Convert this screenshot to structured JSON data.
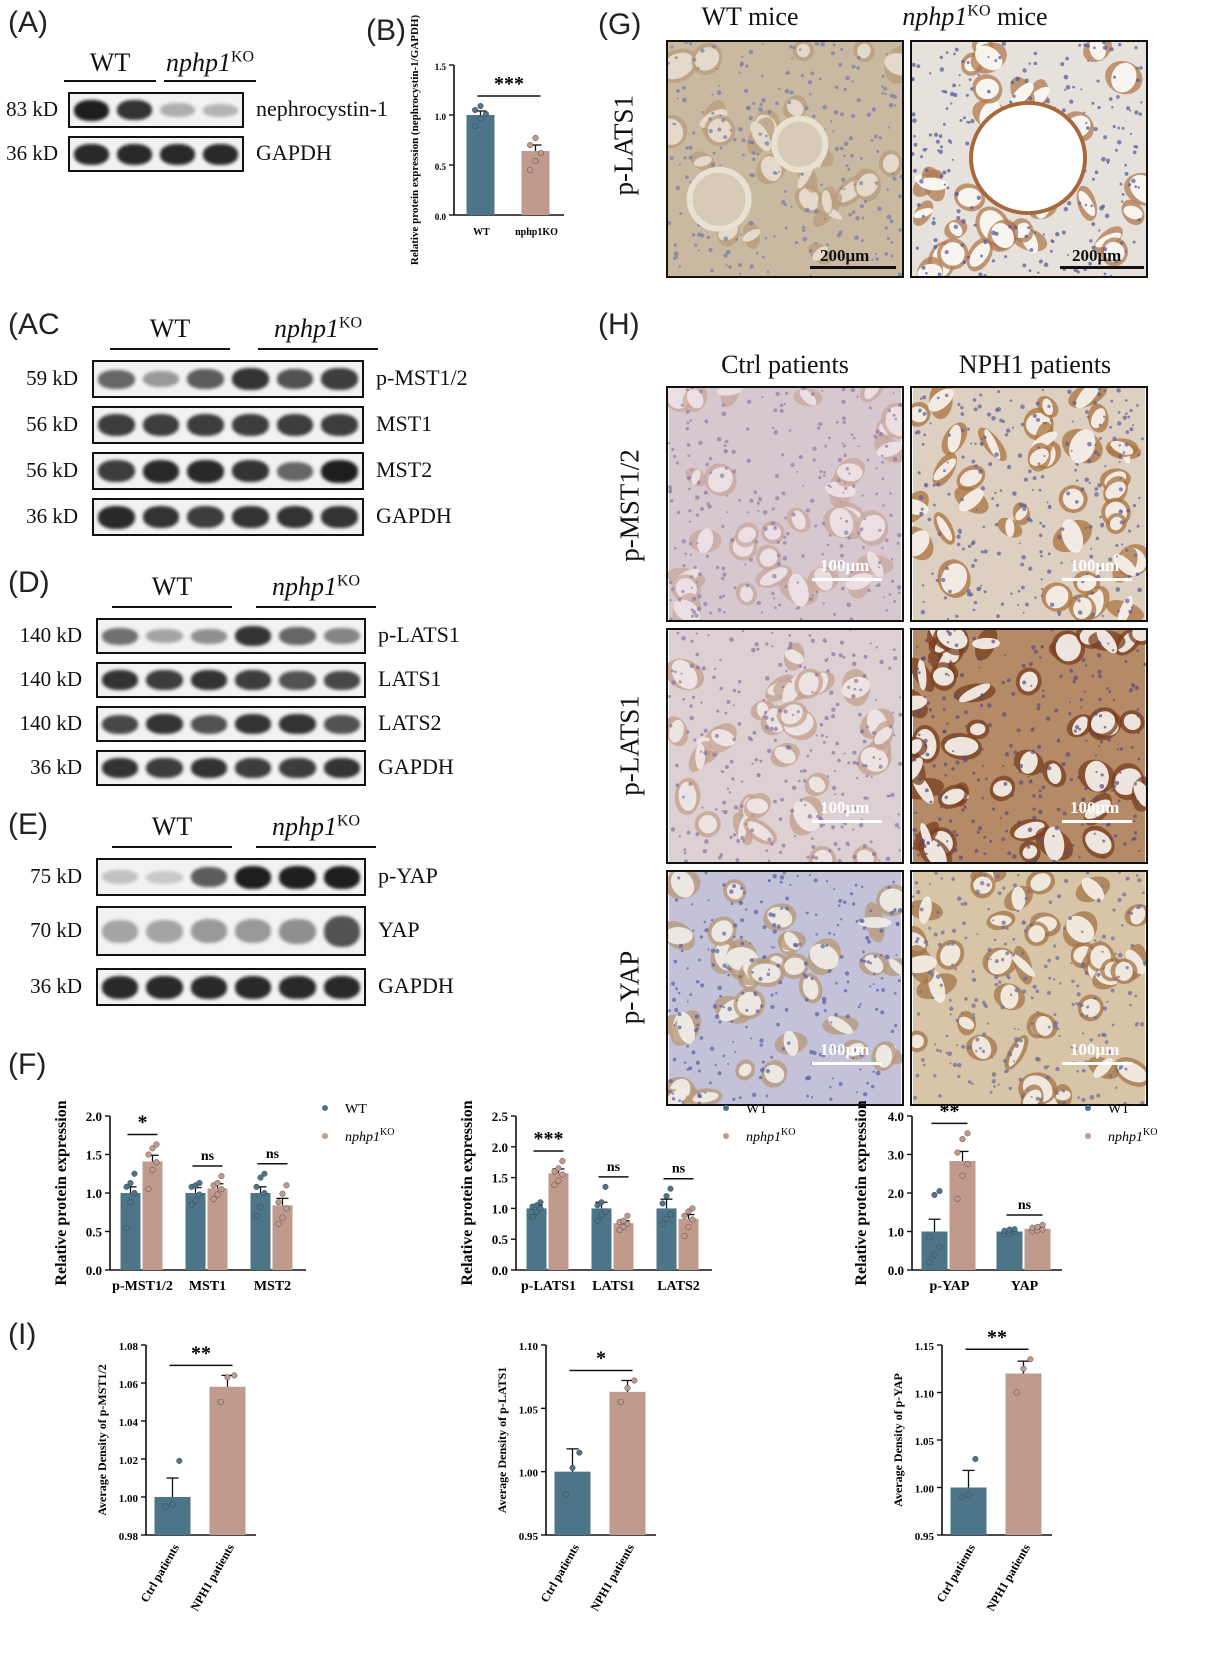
{
  "colors": {
    "wt": "#4d7589",
    "ko": "#c09a8d",
    "stain_brown": "#9a6a3e",
    "stain_blue": "#6f73a8"
  },
  "panels": {
    "A": {
      "label": "(A)",
      "groups": [
        "WT",
        "nphp1",
        "KO"
      ],
      "rows": [
        {
          "kd": "83 kD",
          "protein": "nephrocystin-1",
          "intensity": [
            0.95,
            0.85,
            0.25,
            0.22
          ]
        },
        {
          "kd": "36 kD",
          "protein": "GAPDH",
          "intensity": [
            0.9,
            0.9,
            0.9,
            0.9
          ]
        }
      ]
    },
    "B": {
      "label": "(B)"
    },
    "C": {
      "label": "(AC",
      "groups": [
        "WT",
        "nphp1",
        "KO"
      ],
      "rows": [
        {
          "kd": "59 kD",
          "protein": "p-MST1/2",
          "intensity": [
            0.6,
            0.35,
            0.65,
            0.85,
            0.7,
            0.8
          ]
        },
        {
          "kd": "56 kD",
          "protein": "MST1",
          "intensity": [
            0.8,
            0.8,
            0.8,
            0.8,
            0.8,
            0.8
          ]
        },
        {
          "kd": "56 kD",
          "protein": "MST2",
          "intensity": [
            0.8,
            0.9,
            0.9,
            0.85,
            0.6,
            0.95
          ]
        },
        {
          "kd": "36 kD",
          "protein": "GAPDH",
          "intensity": [
            0.9,
            0.85,
            0.8,
            0.85,
            0.85,
            0.85
          ]
        }
      ]
    },
    "D": {
      "label": "(D)",
      "groups": [
        "WT",
        "nphp1",
        "KO"
      ],
      "rows": [
        {
          "kd": "140 kD",
          "protein": "p-LATS1",
          "intensity": [
            0.55,
            0.3,
            0.4,
            0.85,
            0.6,
            0.45
          ]
        },
        {
          "kd": "140 kD",
          "protein": "LATS1",
          "intensity": [
            0.85,
            0.8,
            0.85,
            0.8,
            0.7,
            0.75
          ]
        },
        {
          "kd": "140 kD",
          "protein": "LATS2",
          "intensity": [
            0.75,
            0.85,
            0.7,
            0.85,
            0.85,
            0.7
          ]
        },
        {
          "kd": "36 kD",
          "protein": "GAPDH",
          "intensity": [
            0.85,
            0.8,
            0.85,
            0.8,
            0.8,
            0.85
          ]
        }
      ]
    },
    "E": {
      "label": "(E)",
      "groups": [
        "WT",
        "nphp1",
        "KO"
      ],
      "rows": [
        {
          "kd": "75 kD",
          "protein": "p-YAP",
          "intensity": [
            0.15,
            0.12,
            0.65,
            0.95,
            0.95,
            0.95
          ]
        },
        {
          "kd": "70 kD",
          "protein": "YAP",
          "intensity": [
            0.3,
            0.3,
            0.35,
            0.35,
            0.4,
            0.7
          ]
        },
        {
          "kd": "36 kD",
          "protein": "GAPDH",
          "intensity": [
            0.9,
            0.9,
            0.9,
            0.9,
            0.9,
            0.9
          ]
        }
      ]
    },
    "F": {
      "label": "(F)"
    },
    "G": {
      "label": "(G)",
      "col_headers": [
        "WT mice",
        "nphp1",
        "KO",
        "mice"
      ],
      "row_label": "p-LATS1",
      "scale": "200μm"
    },
    "H": {
      "label": "(H)",
      "col_headers": [
        "Ctrl patients",
        "NPH1 patients"
      ],
      "row_labels": [
        "p-MST1/2",
        "p-LATS1",
        "p-YAP"
      ],
      "scale": "100μm"
    },
    "I": {
      "label": "(I)"
    }
  },
  "chart_data": [
    {
      "id": "B",
      "type": "bar",
      "categories": [
        "WT",
        "nphp1KO"
      ],
      "values": [
        1.0,
        0.64
      ],
      "errors": [
        0.04,
        0.06
      ],
      "points": [
        [
          0.89,
          0.96,
          1.01,
          1.05,
          1.09
        ],
        [
          0.45,
          0.54,
          0.62,
          0.7,
          0.77
        ]
      ],
      "ylabel": "Relative protein expression (nephrocystin-1/GAPDH)",
      "ylim": [
        0,
        1.5
      ],
      "yticks": [
        "0.0",
        "0.5",
        "1.0",
        "1.5"
      ],
      "significance": [
        "***"
      ]
    },
    {
      "id": "F1",
      "type": "bar",
      "categories": [
        "p-MST1/2",
        "MST1",
        "MST2"
      ],
      "series": [
        {
          "name": "WT",
          "values": [
            1.0,
            1.0,
            1.0
          ],
          "errors": [
            0.08,
            0.07,
            0.08
          ],
          "points": [
            [
              0.55,
              0.88,
              1.0,
              1.08,
              1.13,
              1.25
            ],
            [
              0.85,
              0.9,
              0.98,
              1.08,
              1.1,
              1.13
            ],
            [
              0.7,
              0.82,
              1.0,
              1.08,
              1.2,
              1.25
            ]
          ]
        },
        {
          "name": "nphp1KO",
          "values": [
            1.41,
            1.06,
            0.84
          ],
          "errors": [
            0.08,
            0.06,
            0.09
          ],
          "points": [
            [
              1.05,
              1.3,
              1.4,
              1.5,
              1.58,
              1.63
            ],
            [
              0.92,
              0.98,
              1.05,
              1.1,
              1.13,
              1.22
            ],
            [
              0.6,
              0.68,
              0.8,
              0.88,
              0.99,
              1.1
            ]
          ]
        }
      ],
      "ylabel": "Relative protein expression",
      "ylim": [
        0,
        2.0
      ],
      "yticks": [
        "0.0",
        "0.5",
        "1.0",
        "1.5",
        "2.0"
      ],
      "significance": [
        "*",
        "ns",
        "ns"
      ],
      "legend": [
        "WT",
        "nphp1",
        "KO"
      ]
    },
    {
      "id": "F2",
      "type": "bar",
      "categories": [
        "p-LATS1",
        "LATS1",
        "LATS2"
      ],
      "series": [
        {
          "name": "WT",
          "values": [
            1.0,
            1.0,
            1.0
          ],
          "errors": [
            0.05,
            0.1,
            0.15
          ],
          "points": [
            [
              0.86,
              0.94,
              1.0,
              1.03,
              1.05,
              1.1
            ],
            [
              0.8,
              0.9,
              0.95,
              1.05,
              1.1,
              1.35
            ],
            [
              0.75,
              0.83,
              0.9,
              1.08,
              1.2,
              1.32
            ]
          ]
        },
        {
          "name": "nphp1KO",
          "values": [
            1.57,
            0.76,
            0.83
          ],
          "errors": [
            0.07,
            0.04,
            0.07
          ],
          "points": [
            [
              1.38,
              1.45,
              1.55,
              1.6,
              1.65,
              1.77
            ],
            [
              0.65,
              0.7,
              0.75,
              0.78,
              0.8,
              0.88
            ],
            [
              0.55,
              0.7,
              0.82,
              0.88,
              0.95,
              1.0
            ]
          ]
        }
      ],
      "ylabel": "Relative protein expression",
      "ylim": [
        0,
        2.5
      ],
      "yticks": [
        "0.0",
        "0.5",
        "1.0",
        "1.5",
        "2.0",
        "2.5"
      ],
      "significance": [
        "***",
        "ns",
        "ns"
      ],
      "legend": [
        "WT",
        "nphp1",
        "KO"
      ]
    },
    {
      "id": "F3",
      "type": "bar",
      "categories": [
        "p-YAP",
        "YAP"
      ],
      "series": [
        {
          "name": "WT",
          "values": [
            1.0,
            1.0
          ],
          "errors": [
            0.32,
            0.04
          ],
          "points": [
            [
              0.2,
              0.4,
              0.6,
              0.85,
              1.95,
              2.05
            ],
            [
              0.92,
              0.95,
              1.0,
              1.02,
              1.05,
              1.06
            ]
          ]
        },
        {
          "name": "nphp1KO",
          "values": [
            2.83,
            1.07
          ],
          "errors": [
            0.25,
            0.05
          ],
          "points": [
            [
              1.85,
              2.45,
              2.75,
              3.05,
              3.4,
              3.55
            ],
            [
              1.0,
              1.03,
              1.05,
              1.1,
              1.12,
              1.17
            ]
          ]
        }
      ],
      "ylabel": "Relative protein expression",
      "ylim": [
        0,
        4.0
      ],
      "yticks": [
        "0.0",
        "1.0",
        "2.0",
        "3.0",
        "4.0"
      ],
      "significance": [
        "**",
        "ns"
      ],
      "legend": [
        "WT",
        "nphp1",
        "KO"
      ]
    },
    {
      "id": "I1",
      "type": "bar",
      "categories": [
        "Ctrl patients",
        "NPH1 patients"
      ],
      "values": [
        1.0,
        1.058
      ],
      "errors": [
        0.01,
        0.006
      ],
      "points": [
        [
          0.995,
          0.996,
          1.019
        ],
        [
          1.05,
          1.063,
          1.064
        ]
      ],
      "ylabel": "Average Density of p-MST1/2",
      "ylim": [
        0.98,
        1.08
      ],
      "yticks": [
        "0.98",
        "1.00",
        "1.02",
        "1.04",
        "1.06",
        "1.08"
      ],
      "significance": [
        "**"
      ]
    },
    {
      "id": "I2",
      "type": "bar",
      "categories": [
        "Ctrl patients",
        "NPH1 patients"
      ],
      "values": [
        1.0,
        1.063
      ],
      "errors": [
        0.018,
        0.009
      ],
      "points": [
        [
          0.982,
          1.003,
          1.015
        ],
        [
          1.055,
          1.066,
          1.072
        ]
      ],
      "ylabel": "Average Density of p-LATS1",
      "ylim": [
        0.95,
        1.1
      ],
      "yticks": [
        "0.95",
        "1.00",
        "1.05",
        "1.10"
      ],
      "significance": [
        "*"
      ]
    },
    {
      "id": "I3",
      "type": "bar",
      "categories": [
        "Ctrl patients",
        "NPH1 patients"
      ],
      "values": [
        1.0,
        1.12
      ],
      "errors": [
        0.018,
        0.013
      ],
      "points": [
        [
          0.99,
          0.992,
          1.03
        ],
        [
          1.1,
          1.125,
          1.135
        ]
      ],
      "ylabel": "Average Density of p-YAP",
      "ylim": [
        0.95,
        1.15
      ],
      "yticks": [
        "0.95",
        "1.00",
        "1.05",
        "1.10",
        "1.15"
      ],
      "significance": [
        "**"
      ]
    }
  ]
}
